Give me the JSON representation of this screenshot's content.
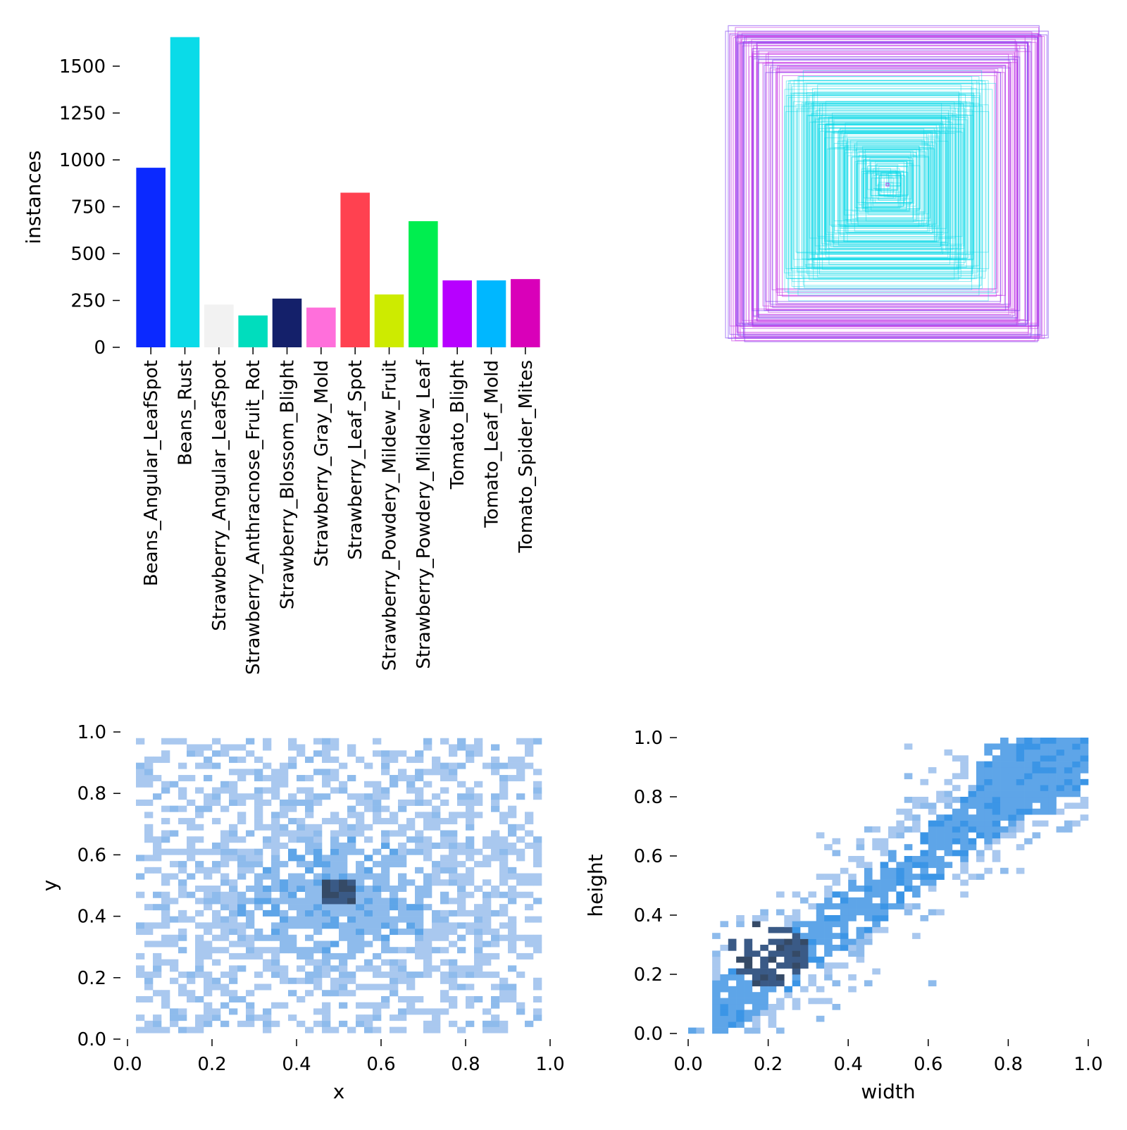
{
  "chart_data": [
    {
      "type": "bar",
      "title": "",
      "xlabel": "",
      "ylabel": "instances",
      "ylim": [
        0,
        1650
      ],
      "yticks": [
        "0",
        "250",
        "500",
        "750",
        "1000",
        "1250",
        "1500"
      ],
      "categories": [
        "Beans_Angular_LeafSpot",
        "Beans_Rust",
        "Strawberry_Angular_LeafSpot",
        "Strawberry_Anthracnose_Fruit_Rot",
        "Strawberry_Blossom_Blight",
        "Strawberry_Gray_Mold",
        "Strawberry_Leaf_Spot",
        "Strawberry_Powdery_Mildew_Fruit",
        "Strawberry_Powdery_Mildew_Leaf",
        "Tomato_Blight",
        "Tomato_Leaf_Mold",
        "Tomato_Spider_Mites"
      ],
      "values": [
        958,
        1655,
        228,
        170,
        260,
        212,
        825,
        282,
        673,
        357,
        357,
        364
      ],
      "colors": [
        "#0b29ff",
        "#0adbe8",
        "#f2f2f2",
        "#00ddbd",
        "#14206a",
        "#ff6fdb",
        "#ff4150",
        "#cdeb00",
        "#00ee4f",
        "#b700ff",
        "#00b7ff",
        "#d900b9"
      ]
    },
    {
      "type": "box_overlay",
      "title": "",
      "description_colors": [
        "#00d7e6",
        "#c93ce8"
      ],
      "cyan_box_sizes": [
        0.62,
        0.58,
        0.55,
        0.52,
        0.5,
        0.48,
        0.45,
        0.42,
        0.4,
        0.38,
        0.35,
        0.33,
        0.3,
        0.28,
        0.25,
        0.22,
        0.2,
        0.18,
        0.15,
        0.12,
        0.1,
        0.08,
        0.06,
        0.04
      ],
      "magenta_box_sizes": [
        0.98,
        0.96,
        0.95,
        0.94,
        0.92,
        0.9,
        0.88,
        0.86,
        0.84,
        0.82,
        0.8,
        0.78,
        0.75,
        0.72,
        0.7,
        0.02
      ]
    },
    {
      "type": "heatmap",
      "xlabel": "x",
      "ylabel": "y",
      "xlim": [
        0,
        1
      ],
      "ylim": [
        0,
        1
      ],
      "xticks": [
        "0.0",
        "0.2",
        "0.4",
        "0.6",
        "0.8",
        "1.0"
      ],
      "yticks": [
        "0.0",
        "0.2",
        "0.4",
        "0.6",
        "0.8",
        "1.0"
      ],
      "bins": 50,
      "peak": [
        0.5,
        0.48
      ],
      "color": "#3b8fe0"
    },
    {
      "type": "heatmap",
      "xlabel": "width",
      "ylabel": "height",
      "xlim": [
        0,
        1
      ],
      "ylim": [
        0,
        1
      ],
      "xticks": [
        "0.0",
        "0.2",
        "0.4",
        "0.6",
        "0.8",
        "1.0"
      ],
      "yticks": [
        "0.0",
        "0.2",
        "0.4",
        "0.6",
        "0.8",
        "1.0"
      ],
      "bins": 50,
      "peak": [
        0.2,
        0.25
      ],
      "color": "#3b8fe0"
    }
  ]
}
